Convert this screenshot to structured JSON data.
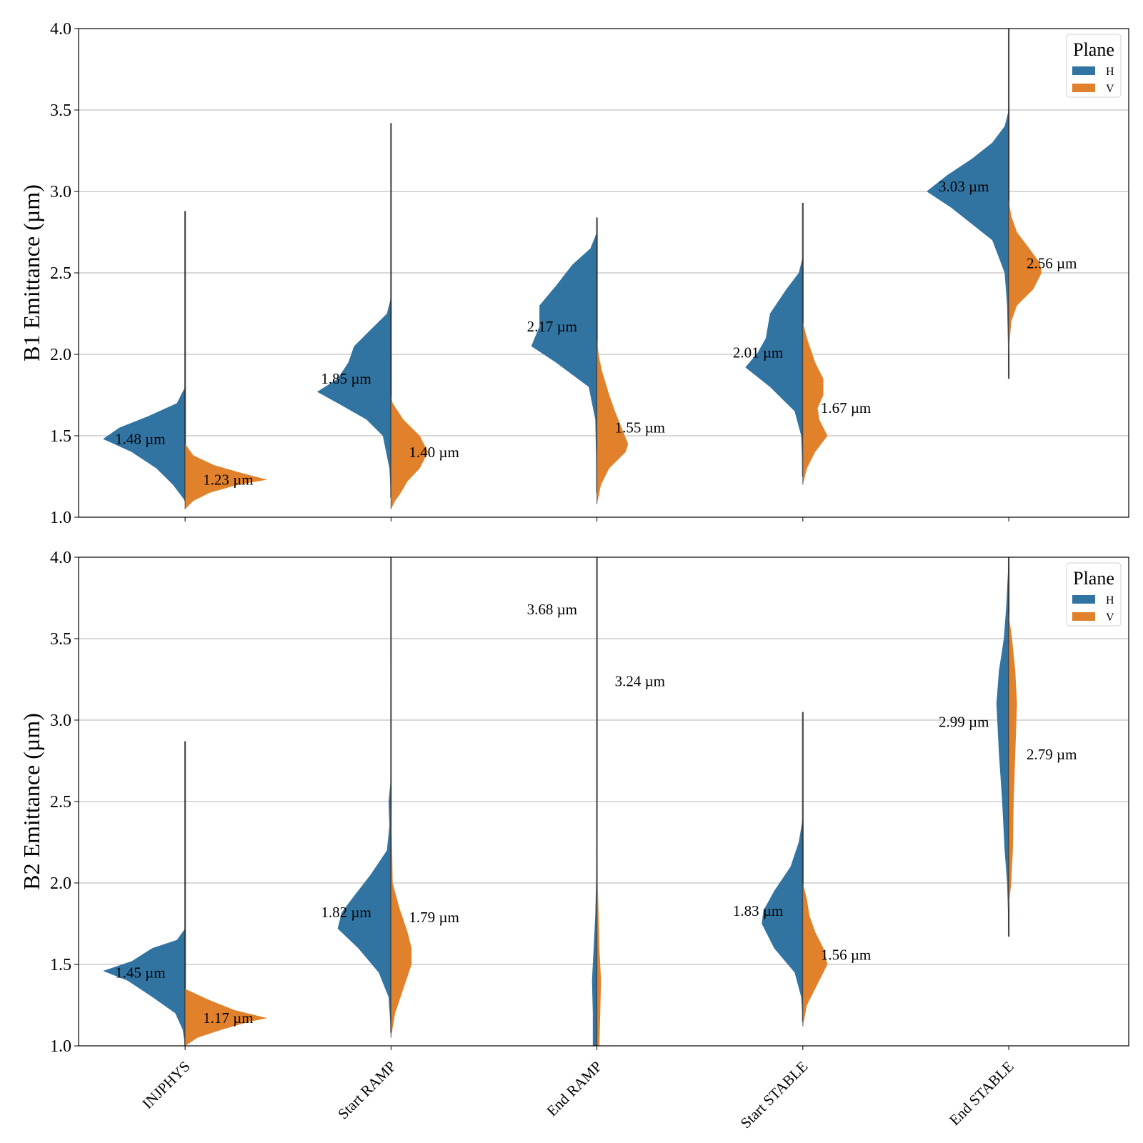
{
  "chart_data": [
    {
      "type": "violin",
      "ylabel": "B1 Emittance (µm)",
      "ylim": [
        1.0,
        4.0
      ],
      "yticks": [
        "1.0",
        "1.5",
        "2.0",
        "2.5",
        "3.0",
        "3.5",
        "4.0"
      ],
      "categories": [
        "INJPHYS",
        "Start RAMP",
        "End RAMP",
        "Start STABLE",
        "End STABLE"
      ],
      "grid": true,
      "legend": {
        "title": "Plane",
        "position": "top-right"
      },
      "series": [
        {
          "name": "H",
          "color": "#3274a1",
          "median_labels": [
            "1.48 µm",
            "1.85 µm",
            "2.17 µm",
            "2.01 µm",
            "3.03 µm"
          ],
          "medians": [
            1.48,
            1.85,
            2.17,
            2.01,
            3.03
          ],
          "range": [
            [
              1.1,
              2.88
            ],
            [
              1.12,
              3.42
            ],
            [
              1.15,
              2.84
            ],
            [
              1.25,
              2.93
            ],
            [
              1.85,
              4.0
            ]
          ],
          "profiles": [
            [
              [
                1.1,
                0.0
              ],
              [
                1.2,
                0.15
              ],
              [
                1.3,
                0.35
              ],
              [
                1.4,
                0.65
              ],
              [
                1.48,
                1.0
              ],
              [
                1.55,
                0.8
              ],
              [
                1.62,
                0.45
              ],
              [
                1.7,
                0.1
              ],
              [
                1.8,
                0.0
              ]
            ],
            [
              [
                1.12,
                0.0
              ],
              [
                1.3,
                0.02
              ],
              [
                1.5,
                0.1
              ],
              [
                1.6,
                0.3
              ],
              [
                1.7,
                0.65
              ],
              [
                1.77,
                0.9
              ],
              [
                1.85,
                0.65
              ],
              [
                1.95,
                0.52
              ],
              [
                2.05,
                0.45
              ],
              [
                2.15,
                0.25
              ],
              [
                2.25,
                0.05
              ],
              [
                2.35,
                0.0
              ]
            ],
            [
              [
                1.15,
                0.0
              ],
              [
                1.6,
                0.02
              ],
              [
                1.8,
                0.1
              ],
              [
                1.95,
                0.5
              ],
              [
                2.05,
                0.8
              ],
              [
                2.17,
                0.7
              ],
              [
                2.3,
                0.7
              ],
              [
                2.42,
                0.5
              ],
              [
                2.55,
                0.3
              ],
              [
                2.65,
                0.08
              ],
              [
                2.75,
                0.0
              ]
            ],
            [
              [
                1.25,
                0.0
              ],
              [
                1.5,
                0.02
              ],
              [
                1.65,
                0.1
              ],
              [
                1.8,
                0.4
              ],
              [
                1.92,
                0.7
              ],
              [
                2.01,
                0.55
              ],
              [
                2.1,
                0.45
              ],
              [
                2.25,
                0.4
              ],
              [
                2.4,
                0.2
              ],
              [
                2.5,
                0.05
              ],
              [
                2.6,
                0.0
              ]
            ],
            [
              [
                1.85,
                0.0
              ],
              [
                2.3,
                0.02
              ],
              [
                2.5,
                0.05
              ],
              [
                2.7,
                0.2
              ],
              [
                2.9,
                0.7
              ],
              [
                3.0,
                1.0
              ],
              [
                3.1,
                0.75
              ],
              [
                3.2,
                0.45
              ],
              [
                3.3,
                0.2
              ],
              [
                3.4,
                0.05
              ],
              [
                3.5,
                0.0
              ]
            ]
          ]
        },
        {
          "name": "V",
          "color": "#e1812c",
          "median_labels": [
            "1.23 µm",
            "1.40 µm",
            "1.55 µm",
            "1.67 µm",
            "2.56 µm"
          ],
          "medians": [
            1.23,
            1.4,
            1.55,
            1.67,
            2.56
          ],
          "range": [
            [
              1.05,
              1.45
            ],
            [
              1.05,
              1.75
            ],
            [
              1.08,
              2.1
            ],
            [
              1.2,
              2.2
            ],
            [
              2.0,
              2.95
            ]
          ],
          "profiles": [
            [
              [
                1.05,
                0.0
              ],
              [
                1.1,
                0.1
              ],
              [
                1.15,
                0.3
              ],
              [
                1.2,
                0.65
              ],
              [
                1.23,
                1.0
              ],
              [
                1.27,
                0.7
              ],
              [
                1.32,
                0.35
              ],
              [
                1.38,
                0.1
              ],
              [
                1.45,
                0.0
              ]
            ],
            [
              [
                1.05,
                0.0
              ],
              [
                1.1,
                0.05
              ],
              [
                1.15,
                0.12
              ],
              [
                1.22,
                0.2
              ],
              [
                1.3,
                0.35
              ],
              [
                1.4,
                0.45
              ],
              [
                1.5,
                0.35
              ],
              [
                1.6,
                0.15
              ],
              [
                1.7,
                0.02
              ],
              [
                1.75,
                0.0
              ]
            ],
            [
              [
                1.08,
                0.0
              ],
              [
                1.2,
                0.05
              ],
              [
                1.3,
                0.15
              ],
              [
                1.4,
                0.35
              ],
              [
                1.45,
                0.38
              ],
              [
                1.55,
                0.3
              ],
              [
                1.65,
                0.22
              ],
              [
                1.75,
                0.15
              ],
              [
                1.9,
                0.06
              ],
              [
                2.0,
                0.02
              ],
              [
                2.1,
                0.0
              ]
            ],
            [
              [
                1.2,
                0.0
              ],
              [
                1.3,
                0.05
              ],
              [
                1.4,
                0.15
              ],
              [
                1.5,
                0.3
              ],
              [
                1.6,
                0.2
              ],
              [
                1.67,
                0.18
              ],
              [
                1.75,
                0.25
              ],
              [
                1.85,
                0.25
              ],
              [
                1.95,
                0.15
              ],
              [
                2.1,
                0.05
              ],
              [
                2.2,
                0.0
              ]
            ],
            [
              [
                2.0,
                0.0
              ],
              [
                2.2,
                0.03
              ],
              [
                2.3,
                0.1
              ],
              [
                2.4,
                0.3
              ],
              [
                2.5,
                0.4
              ],
              [
                2.56,
                0.38
              ],
              [
                2.65,
                0.25
              ],
              [
                2.75,
                0.1
              ],
              [
                2.85,
                0.03
              ],
              [
                2.95,
                0.0
              ]
            ]
          ]
        }
      ]
    },
    {
      "type": "violin",
      "ylabel": "B2 Emittance (µm)",
      "ylim": [
        1.0,
        4.0
      ],
      "yticks": [
        "1.0",
        "1.5",
        "2.0",
        "2.5",
        "3.0",
        "3.5",
        "4.0"
      ],
      "categories": [
        "INJPHYS",
        "Start RAMP",
        "End RAMP",
        "Start STABLE",
        "End STABLE"
      ],
      "grid": true,
      "legend": {
        "title": "Plane",
        "position": "top-right"
      },
      "series": [
        {
          "name": "H",
          "color": "#3274a1",
          "median_labels": [
            "1.45 µm",
            "1.82 µm",
            "3.68 µm",
            "1.83 µm",
            "2.99 µm"
          ],
          "medians": [
            1.45,
            1.82,
            3.68,
            1.83,
            2.99
          ],
          "range": [
            [
              1.0,
              2.87
            ],
            [
              1.08,
              4.0
            ],
            [
              1.0,
              4.0
            ],
            [
              1.15,
              3.05
            ],
            [
              1.67,
              4.0
            ]
          ],
          "profiles": [
            [
              [
                1.0,
                0.0
              ],
              [
                1.1,
                0.03
              ],
              [
                1.2,
                0.12
              ],
              [
                1.3,
                0.4
              ],
              [
                1.4,
                0.7
              ],
              [
                1.46,
                1.0
              ],
              [
                1.52,
                0.65
              ],
              [
                1.6,
                0.4
              ],
              [
                1.65,
                0.1
              ],
              [
                1.72,
                0.0
              ]
            ],
            [
              [
                1.08,
                0.0
              ],
              [
                1.3,
                0.03
              ],
              [
                1.45,
                0.15
              ],
              [
                1.6,
                0.4
              ],
              [
                1.72,
                0.65
              ],
              [
                1.82,
                0.6
              ],
              [
                1.92,
                0.45
              ],
              [
                2.05,
                0.25
              ],
              [
                2.2,
                0.05
              ],
              [
                2.35,
                0.02
              ],
              [
                2.5,
                0.03
              ],
              [
                2.65,
                0.0
              ]
            ],
            [
              [
                1.0,
                0.05
              ],
              [
                1.2,
                0.05
              ],
              [
                1.4,
                0.06
              ],
              [
                1.6,
                0.04
              ],
              [
                1.8,
                0.02
              ],
              [
                2.0,
                0.01
              ],
              [
                2.5,
                0.005
              ],
              [
                3.0,
                0.0
              ],
              [
                4.0,
                0.0
              ]
            ],
            [
              [
                1.15,
                0.0
              ],
              [
                1.3,
                0.02
              ],
              [
                1.45,
                0.1
              ],
              [
                1.6,
                0.35
              ],
              [
                1.75,
                0.5
              ],
              [
                1.83,
                0.48
              ],
              [
                1.95,
                0.35
              ],
              [
                2.1,
                0.15
              ],
              [
                2.25,
                0.05
              ],
              [
                2.4,
                0.0
              ]
            ],
            [
              [
                1.67,
                0.0
              ],
              [
                2.0,
                0.02
              ],
              [
                2.2,
                0.05
              ],
              [
                2.5,
                0.08
              ],
              [
                2.8,
                0.12
              ],
              [
                3.1,
                0.15
              ],
              [
                3.3,
                0.12
              ],
              [
                3.5,
                0.06
              ],
              [
                3.7,
                0.03
              ],
              [
                3.9,
                0.01
              ],
              [
                4.0,
                0.0
              ]
            ]
          ]
        },
        {
          "name": "V",
          "color": "#e1812c",
          "median_labels": [
            "1.17 µm",
            "1.79 µm",
            "3.24 µm",
            "1.56 µm",
            "2.79 µm"
          ],
          "medians": [
            1.17,
            1.79,
            3.24,
            1.56,
            2.79
          ],
          "range": [
            [
              1.0,
              1.35
            ],
            [
              1.05,
              4.0
            ],
            [
              1.0,
              4.0
            ],
            [
              1.12,
              2.0
            ],
            [
              1.85,
              3.65
            ]
          ],
          "profiles": [
            [
              [
                1.0,
                0.0
              ],
              [
                1.05,
                0.15
              ],
              [
                1.1,
                0.45
              ],
              [
                1.15,
                0.8
              ],
              [
                1.17,
                1.0
              ],
              [
                1.22,
                0.6
              ],
              [
                1.28,
                0.3
              ],
              [
                1.35,
                0.0
              ]
            ],
            [
              [
                1.05,
                0.0
              ],
              [
                1.2,
                0.05
              ],
              [
                1.35,
                0.15
              ],
              [
                1.5,
                0.25
              ],
              [
                1.6,
                0.25
              ],
              [
                1.7,
                0.2
              ],
              [
                1.85,
                0.1
              ],
              [
                2.0,
                0.02
              ],
              [
                2.5,
                0.005
              ],
              [
                4.0,
                0.0
              ]
            ],
            [
              [
                1.0,
                0.03
              ],
              [
                1.2,
                0.04
              ],
              [
                1.4,
                0.05
              ],
              [
                1.6,
                0.03
              ],
              [
                1.8,
                0.02
              ],
              [
                2.0,
                0.01
              ],
              [
                2.5,
                0.005
              ],
              [
                3.0,
                0.002
              ],
              [
                4.0,
                0.0
              ]
            ],
            [
              [
                1.12,
                0.0
              ],
              [
                1.25,
                0.05
              ],
              [
                1.4,
                0.2
              ],
              [
                1.5,
                0.3
              ],
              [
                1.6,
                0.25
              ],
              [
                1.7,
                0.15
              ],
              [
                1.8,
                0.08
              ],
              [
                1.9,
                0.05
              ],
              [
                2.0,
                0.0
              ]
            ],
            [
              [
                1.85,
                0.0
              ],
              [
                2.0,
                0.03
              ],
              [
                2.2,
                0.05
              ],
              [
                2.5,
                0.06
              ],
              [
                2.8,
                0.08
              ],
              [
                3.1,
                0.1
              ],
              [
                3.3,
                0.08
              ],
              [
                3.5,
                0.04
              ],
              [
                3.65,
                0.0
              ]
            ]
          ]
        }
      ]
    }
  ]
}
